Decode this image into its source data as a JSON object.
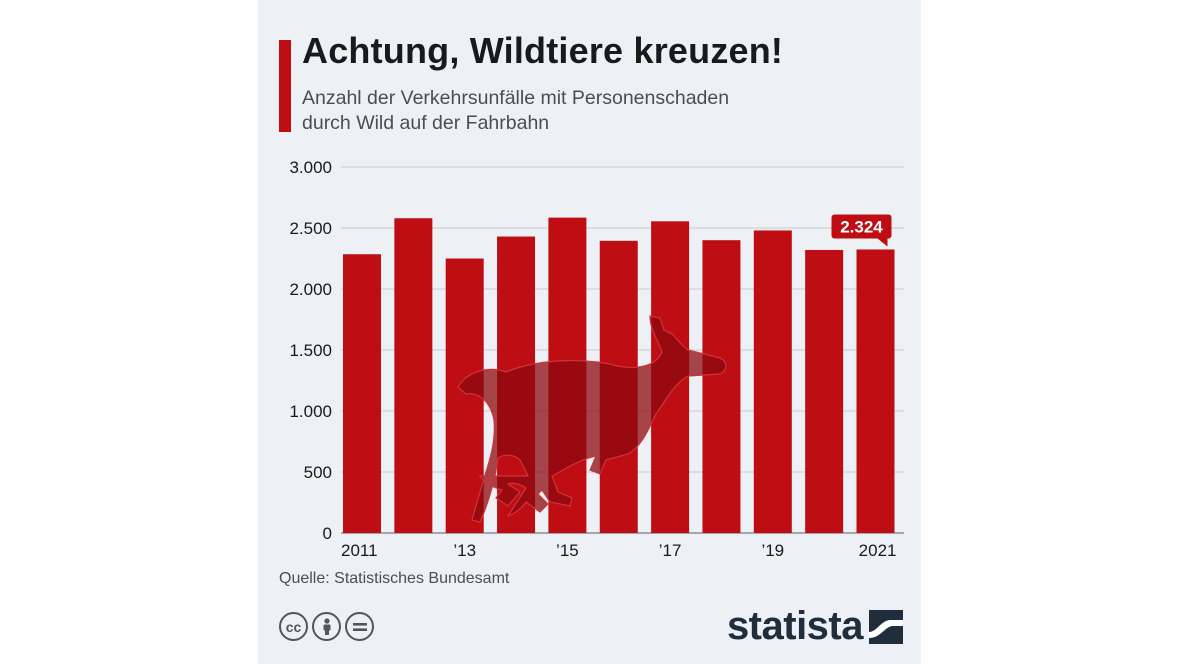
{
  "header": {
    "title": "Achtung, Wildtiere kreuzen!",
    "subtitle_line1": "Anzahl der Verkehrsunfälle mit Personenschaden",
    "subtitle_line2": "durch Wild auf der Fahrbahn"
  },
  "footer": {
    "source": "Quelle: Statistisches Bundesamt",
    "brand": "statista",
    "license_icons": [
      "cc-icon",
      "attribution-icon",
      "no-derivatives-icon"
    ]
  },
  "colors": {
    "bar": "#be0e14",
    "deer": "#8c0a0f",
    "grid": "#c7ccd1",
    "background": "#edf1f5"
  },
  "chart_data": {
    "type": "bar",
    "categories": [
      "2011",
      "2012",
      "2013",
      "2014",
      "2015",
      "2016",
      "2017",
      "2018",
      "2019",
      "2020",
      "2021"
    ],
    "tick_labels": [
      "2011",
      "",
      "’13",
      "",
      "’15",
      "",
      "’17",
      "",
      "’19",
      "",
      "2021"
    ],
    "values": [
      2285,
      2580,
      2250,
      2430,
      2585,
      2395,
      2555,
      2400,
      2480,
      2320,
      2324
    ],
    "yticks": [
      0,
      500,
      1000,
      1500,
      2000,
      2500,
      3000
    ],
    "ytick_labels": [
      "0",
      "500",
      "1.000",
      "1.500",
      "2.000",
      "2.500",
      "3.000"
    ],
    "ylim": [
      0,
      3000
    ],
    "highlight": {
      "index": 10,
      "label": "2.324"
    },
    "grid": true,
    "legend": "none"
  }
}
